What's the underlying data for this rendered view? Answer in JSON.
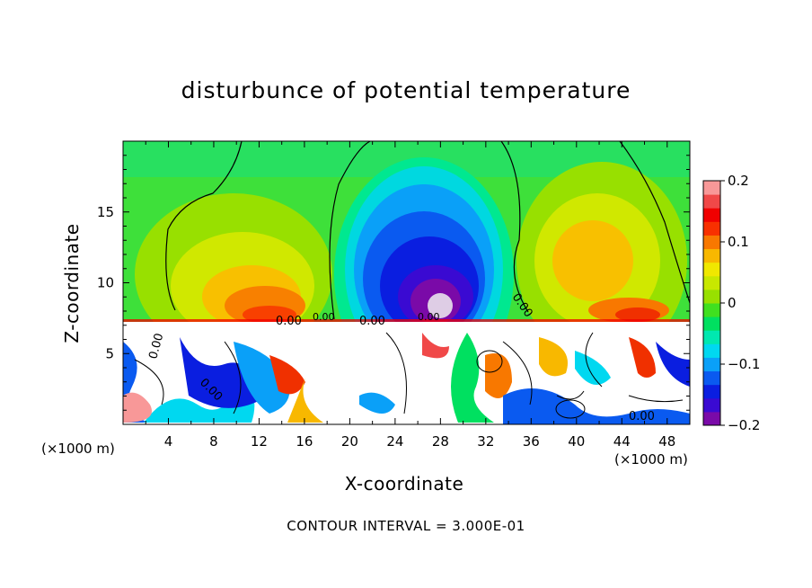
{
  "chart_data": {
    "type": "heatmap",
    "title": "disturbunce of potential temperature",
    "xlabel": "X-coordinate",
    "ylabel": "Z-coordinate",
    "x_unit_left": "(×1000 m)",
    "x_unit_right": "(×1000 m)",
    "xlim": [
      0,
      50
    ],
    "ylim": [
      0,
      20
    ],
    "x_ticks": [
      4,
      8,
      12,
      16,
      20,
      24,
      28,
      32,
      36,
      40,
      44,
      48
    ],
    "y_ticks": [
      5,
      10,
      15
    ],
    "colorbar": {
      "range": [
        -0.2,
        0.2
      ],
      "ticks": [
        {
          "value": 0.2,
          "label": "0.2"
        },
        {
          "value": 0.1,
          "label": "0.1"
        },
        {
          "value": 0,
          "label": "0"
        },
        {
          "value": -0.1,
          "label": "−0.1"
        },
        {
          "value": -0.2,
          "label": "−0.2"
        }
      ],
      "colors": [
        "#7a0aa8",
        "#3a0ad2",
        "#0a1ee0",
        "#0a5af0",
        "#0aa0f8",
        "#00d8f0",
        "#00e8b0",
        "#00e060",
        "#40e020",
        "#98e000",
        "#c8e800",
        "#f0e800",
        "#f8b800",
        "#f87800",
        "#f83000",
        "#f00000",
        "#f04848",
        "#f89898"
      ]
    },
    "contour_labels": [
      "0.00",
      "0.00",
      "0.00",
      "0.00",
      "0.00",
      "0.00",
      "0.00",
      "0.00"
    ],
    "upper_layer_features": [
      {
        "x": 9,
        "z": 10,
        "value": 0.08
      },
      {
        "x": 14,
        "z": 9,
        "value": 0.1
      },
      {
        "x": 26,
        "z": 12,
        "value": -0.12
      },
      {
        "x": 28,
        "z": 9,
        "value": -0.2
      },
      {
        "x": 39,
        "z": 12,
        "value": 0.09
      },
      {
        "x": 44,
        "z": 9,
        "value": 0.1
      }
    ],
    "footer": "CONTOUR INTERVAL = 3.000E-01"
  }
}
